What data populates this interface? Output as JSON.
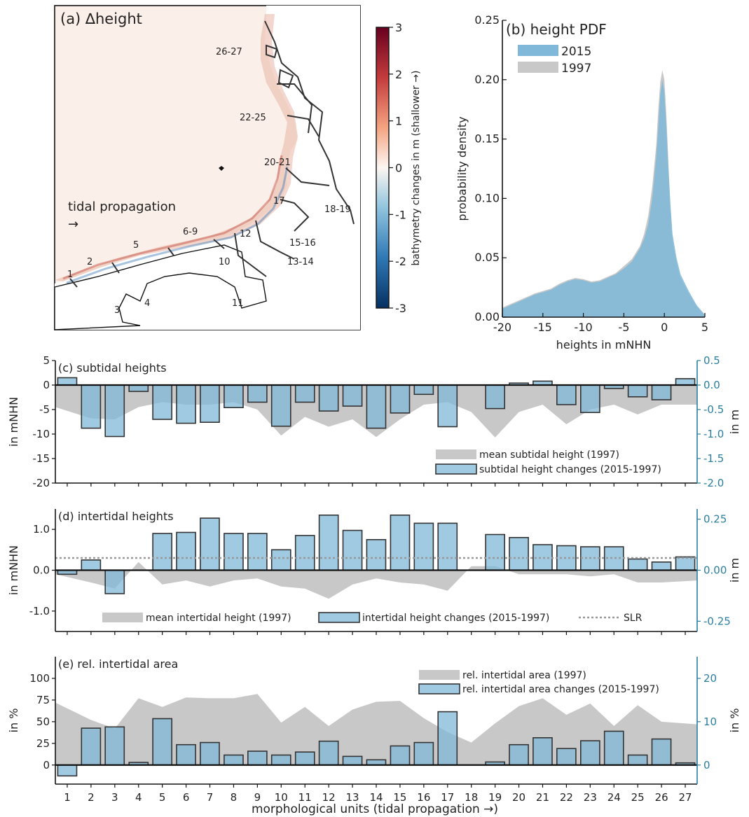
{
  "figure": {
    "units_axis_label": "morphological units (tidal propagation →)",
    "unit_ticks": [
      "1",
      "2",
      "3",
      "4",
      "5",
      "6",
      "7",
      "8",
      "9",
      "10",
      "11",
      "12",
      "13",
      "14",
      "15",
      "16",
      "17",
      "18",
      "19",
      "20",
      "21",
      "22",
      "23",
      "24",
      "25",
      "26",
      "27"
    ]
  },
  "colors": {
    "bar_fill": "#7fb8d8",
    "bar_stroke": "#333333",
    "area_fill": "#c8c8c8",
    "right_axis": "#2a7fa0",
    "sea_background": "#fbefe9",
    "land": "#ffffff"
  },
  "panel_a": {
    "title": "(a) ∆height",
    "annotation_line1": "tidal propagation",
    "annotation_line2": "→",
    "unit_labels": [
      "26-27",
      "22-25",
      "20-21",
      "17",
      "18-19",
      "6-9",
      "5",
      "12",
      "15-16",
      "13-14",
      "10",
      "11",
      "1",
      "2",
      "4",
      "3"
    ],
    "colorbar": {
      "label": "bathymetry changes in m (shallower →)",
      "ticks": [
        "3",
        "2",
        "1",
        "0",
        "-1",
        "-2",
        "-3"
      ],
      "range": [
        -3,
        3
      ]
    }
  },
  "chart_data": [
    {
      "id": "b",
      "type": "area",
      "title": "(b) height PDF",
      "xlabel": "heights in mNHN",
      "ylabel": "probability density",
      "xlim": [
        -20,
        5
      ],
      "ylim": [
        0,
        0.25
      ],
      "xticks": [
        "-20",
        "-15",
        "-10",
        "-5",
        "0",
        "5"
      ],
      "yticks": [
        "0.00",
        "0.05",
        "0.10",
        "0.15",
        "0.20",
        "0.25"
      ],
      "series": [
        {
          "name": "2015",
          "color": "#7fb8d8",
          "x": [
            -20,
            -19,
            -18,
            -17,
            -16,
            -15,
            -14,
            -13,
            -12,
            -11,
            -10,
            -9,
            -8,
            -7,
            -6,
            -5,
            -4,
            -3,
            -2.5,
            -2,
            -1.5,
            -1,
            -0.75,
            -0.5,
            -0.25,
            0,
            0.25,
            0.5,
            0.75,
            1,
            1.5,
            2,
            3,
            4,
            5
          ],
          "y": [
            0.007,
            0.01,
            0.013,
            0.016,
            0.019,
            0.021,
            0.023,
            0.027,
            0.03,
            0.032,
            0.031,
            0.029,
            0.03,
            0.033,
            0.036,
            0.041,
            0.047,
            0.058,
            0.066,
            0.078,
            0.1,
            0.135,
            0.16,
            0.188,
            0.2,
            0.19,
            0.16,
            0.125,
            0.095,
            0.07,
            0.05,
            0.036,
            0.022,
            0.01,
            0.002
          ]
        },
        {
          "name": "1997",
          "color": "#c8c8c8",
          "x": [
            -20,
            -19,
            -18,
            -17,
            -16,
            -15,
            -14,
            -13,
            -12,
            -11,
            -10,
            -9,
            -8,
            -7,
            -6,
            -5,
            -4,
            -3,
            -2.5,
            -2,
            -1.5,
            -1,
            -0.75,
            -0.5,
            -0.25,
            0,
            0.25,
            0.5,
            0.75,
            1,
            1.5,
            2,
            3,
            4,
            5
          ],
          "y": [
            0.008,
            0.011,
            0.014,
            0.017,
            0.02,
            0.022,
            0.024,
            0.028,
            0.031,
            0.033,
            0.032,
            0.03,
            0.031,
            0.034,
            0.037,
            0.043,
            0.049,
            0.06,
            0.07,
            0.085,
            0.11,
            0.145,
            0.175,
            0.198,
            0.208,
            0.2,
            0.17,
            0.13,
            0.09,
            0.065,
            0.046,
            0.033,
            0.02,
            0.009,
            0.002
          ]
        }
      ],
      "legend": [
        "2015",
        "1997"
      ]
    },
    {
      "id": "c",
      "type": "bar",
      "title": "(c) subtidal heights",
      "ylabel_left": "in mNHN",
      "ylabel_right": "in m",
      "ylim_left": [
        -20,
        5
      ],
      "ylim_right": [
        -2.0,
        0.5
      ],
      "yticks_left": [
        "5",
        "0",
        "-5",
        "-10",
        "-15",
        "-20"
      ],
      "yticks_right": [
        "0.5",
        "0.0",
        "-0.5",
        "-1.0",
        "-1.5",
        "-2.0"
      ],
      "categories": [
        "1",
        "2",
        "3",
        "4",
        "5",
        "6",
        "7",
        "8",
        "9",
        "10",
        "11",
        "12",
        "13",
        "14",
        "15",
        "16",
        "17",
        "18",
        "19",
        "20",
        "21",
        "22",
        "23",
        "24",
        "25",
        "26",
        "27"
      ],
      "area_series": {
        "name": "mean subtidal height (1997)",
        "values": [
          -4.5,
          -6.8,
          -7.0,
          -4.5,
          -3.5,
          -4.0,
          -4.0,
          -3.5,
          -5.0,
          -10.3,
          -6.5,
          -8.5,
          -7.0,
          -10.6,
          -7.0,
          -4.0,
          -3.5,
          -5.5,
          -10.7,
          -5.5,
          -4.0,
          -8.0,
          -5.0,
          -4.0,
          -6.0,
          -4.0,
          -4.0
        ]
      },
      "bar_series": {
        "name": "subtidal height changes (2015-1997)",
        "values": [
          0.15,
          -0.88,
          -1.05,
          -0.13,
          -0.7,
          -0.78,
          -0.76,
          -0.46,
          -0.35,
          -0.84,
          -0.35,
          -0.53,
          -0.43,
          -0.88,
          -0.57,
          -0.19,
          -0.85,
          0,
          -0.48,
          0.04,
          0.08,
          -0.4,
          -0.56,
          -0.07,
          -0.24,
          -0.3,
          0.13
        ]
      }
    },
    {
      "id": "d",
      "type": "bar",
      "title": "(d) intertidal heights",
      "ylabel_left": "in mNHN",
      "ylabel_right": "in m",
      "ylim_left": [
        -1.5,
        1.5
      ],
      "ylim_right": [
        -0.3,
        0.3
      ],
      "yticks_left": [
        "1.0",
        "0.0",
        "-1.0"
      ],
      "yticks_right": [
        "0.25",
        "0.00",
        "-0.25"
      ],
      "categories": [
        "1",
        "2",
        "3",
        "4",
        "5",
        "6",
        "7",
        "8",
        "9",
        "10",
        "11",
        "12",
        "13",
        "14",
        "15",
        "16",
        "17",
        "18",
        "19",
        "20",
        "21",
        "22",
        "23",
        "24",
        "25",
        "26",
        "27"
      ],
      "area_series": {
        "name": "mean intertidal height (1997)",
        "values": [
          -0.1,
          -0.3,
          -0.45,
          0.2,
          -0.35,
          -0.25,
          -0.4,
          -0.25,
          -0.2,
          -0.4,
          -0.45,
          -0.7,
          -0.35,
          -0.2,
          -0.3,
          -0.35,
          -0.5,
          0.1,
          0.1,
          -0.1,
          -0.1,
          -0.1,
          -0.15,
          -0.1,
          -0.3,
          -0.3,
          -0.25
        ]
      },
      "bar_series": {
        "name": "intertidal height changes (2015-1997)",
        "values": [
          -0.02,
          0.05,
          -0.115,
          0.0,
          0.18,
          0.185,
          0.255,
          0.18,
          0.18,
          0.1,
          0.17,
          0.27,
          0.195,
          0.15,
          0.27,
          0.23,
          0.23,
          0,
          0.175,
          0.16,
          0.125,
          0.12,
          0.115,
          0.115,
          0.055,
          0.04,
          0.065
        ]
      },
      "reference_line": {
        "name": "SLR",
        "value": 0.06
      }
    },
    {
      "id": "e",
      "type": "bar",
      "title": "(e) rel. intertidal area",
      "ylabel_left": "in %",
      "ylabel_right": "in %",
      "ylim_left": [
        -22,
        125
      ],
      "ylim_right": [
        -4.4,
        25
      ],
      "yticks_left": [
        "100",
        "75",
        "50",
        "25",
        "0"
      ],
      "yticks_right": [
        "20",
        "10",
        "0"
      ],
      "categories": [
        "1",
        "2",
        "3",
        "4",
        "5",
        "6",
        "7",
        "8",
        "9",
        "10",
        "11",
        "12",
        "13",
        "14",
        "15",
        "16",
        "17",
        "18",
        "19",
        "20",
        "21",
        "22",
        "23",
        "24",
        "25",
        "26",
        "27"
      ],
      "area_series": {
        "name": "rel. intertidal area (1997)",
        "values": [
          72,
          52,
          42,
          77,
          67,
          78,
          77,
          77,
          82,
          49,
          67,
          45,
          64,
          73,
          74,
          54,
          38,
          26,
          48,
          68,
          77,
          58,
          71,
          45,
          69,
          50,
          47
        ]
      },
      "bar_series": {
        "name": "rel. intertidal area changes (2015-1997)",
        "values": [
          -2.5,
          8.5,
          8.8,
          0.6,
          10.7,
          4.7,
          5.2,
          2.3,
          3.2,
          2.3,
          3.0,
          5.5,
          2.0,
          1.2,
          4.4,
          5.2,
          12.3,
          0,
          0.7,
          4.7,
          6.3,
          3.8,
          5.6,
          7.8,
          2.3,
          6.0,
          0.5
        ]
      }
    }
  ]
}
